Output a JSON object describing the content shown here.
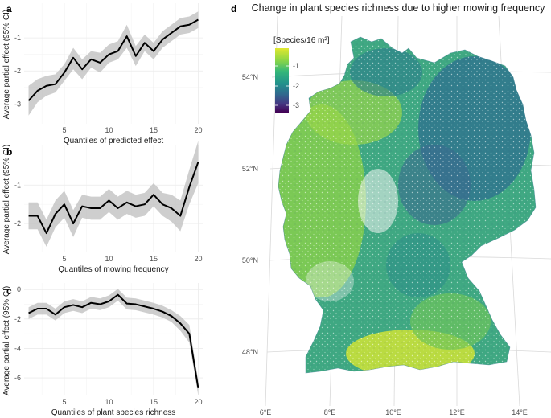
{
  "chart_data": [
    {
      "type": "line",
      "panel": "a",
      "xlabel": "Quantiles of predicted effect",
      "ylabel": "Average partial effect (95% CI)",
      "xlim": [
        0.5,
        20.5
      ],
      "ylim": [
        -3.6,
        0.05
      ],
      "xticks": [
        5,
        10,
        15,
        20
      ],
      "yticks": [
        -1,
        -2,
        -3
      ],
      "x": [
        1,
        2,
        3,
        4,
        5,
        6,
        7,
        8,
        9,
        10,
        11,
        12,
        13,
        14,
        15,
        16,
        17,
        18,
        19,
        20
      ],
      "y": [
        -2.9,
        -2.6,
        -2.45,
        -2.4,
        -2.05,
        -1.6,
        -1.95,
        -1.65,
        -1.75,
        -1.5,
        -1.4,
        -0.95,
        -1.55,
        -1.15,
        -1.4,
        -1.05,
        -0.85,
        -0.65,
        -0.6,
        -0.45
      ],
      "ci_low": [
        -3.35,
        -2.95,
        -2.75,
        -2.65,
        -2.3,
        -1.95,
        -2.25,
        -1.9,
        -2.05,
        -1.75,
        -1.65,
        -1.3,
        -1.85,
        -1.4,
        -1.65,
        -1.3,
        -1.1,
        -0.9,
        -0.85,
        -0.7
      ],
      "ci_high": [
        -2.45,
        -2.25,
        -2.15,
        -2.1,
        -1.8,
        -1.3,
        -1.65,
        -1.4,
        -1.45,
        -1.2,
        -1.1,
        -0.6,
        -1.25,
        -0.9,
        -1.15,
        -0.8,
        -0.6,
        -0.4,
        -0.35,
        -0.2
      ]
    },
    {
      "type": "line",
      "panel": "b",
      "xlabel": "Quantiles of mowing frequency",
      "ylabel": "Average partial effect (95% CI)",
      "xlim": [
        0.5,
        20.5
      ],
      "ylim": [
        -2.75,
        0.05
      ],
      "xticks": [
        5,
        10,
        15,
        20
      ],
      "yticks": [
        -1,
        -2
      ],
      "x": [
        1,
        2,
        3,
        4,
        5,
        6,
        7,
        8,
        9,
        10,
        11,
        12,
        13,
        14,
        15,
        16,
        17,
        18,
        19,
        20
      ],
      "y": [
        -1.8,
        -1.8,
        -2.25,
        -1.75,
        -1.5,
        -2.0,
        -1.55,
        -1.6,
        -1.6,
        -1.4,
        -1.6,
        -1.45,
        -1.55,
        -1.5,
        -1.25,
        -1.5,
        -1.6,
        -1.8,
        -1.05,
        -0.4
      ],
      "ci_low": [
        -2.15,
        -2.15,
        -2.6,
        -2.1,
        -1.85,
        -2.35,
        -1.85,
        -1.9,
        -1.9,
        -1.7,
        -1.9,
        -1.75,
        -1.85,
        -1.8,
        -1.55,
        -1.8,
        -1.95,
        -2.2,
        -1.5,
        -0.95
      ],
      "ci_high": [
        -1.45,
        -1.45,
        -1.9,
        -1.4,
        -1.15,
        -1.65,
        -1.25,
        -1.3,
        -1.3,
        -1.1,
        -1.3,
        -1.15,
        -1.25,
        -1.2,
        -0.95,
        -1.2,
        -1.25,
        -1.4,
        -0.6,
        0.15
      ]
    },
    {
      "type": "line",
      "panel": "c",
      "xlabel": "Quantiles of plant species richness",
      "ylabel": "Average partial effect (95% CI)",
      "xlim": [
        0.5,
        20.5
      ],
      "ylim": [
        -7.2,
        0.45
      ],
      "xticks": [
        5,
        10,
        15,
        20
      ],
      "yticks": [
        0,
        -2,
        -4,
        -6
      ],
      "x": [
        1,
        2,
        3,
        4,
        5,
        6,
        7,
        8,
        9,
        10,
        11,
        12,
        13,
        14,
        15,
        16,
        17,
        18,
        19,
        20
      ],
      "y": [
        -1.6,
        -1.3,
        -1.3,
        -1.7,
        -1.2,
        -1.05,
        -1.2,
        -0.9,
        -1.0,
        -0.8,
        -0.35,
        -0.95,
        -1.0,
        -1.15,
        -1.3,
        -1.5,
        -1.8,
        -2.3,
        -3.0,
        -6.7
      ],
      "ci_low": [
        -2.0,
        -1.7,
        -1.7,
        -2.1,
        -1.6,
        -1.45,
        -1.6,
        -1.3,
        -1.4,
        -1.2,
        -0.75,
        -1.35,
        -1.4,
        -1.55,
        -1.7,
        -1.9,
        -2.2,
        -2.8,
        -3.6,
        -7.2
      ],
      "ci_high": [
        -1.2,
        -0.9,
        -0.9,
        -1.3,
        -0.8,
        -0.65,
        -0.8,
        -0.5,
        -0.6,
        -0.4,
        0.05,
        -0.55,
        -0.6,
        -0.75,
        -0.9,
        -1.1,
        -1.4,
        -1.8,
        -2.4,
        -6.2
      ]
    },
    {
      "type": "heatmap",
      "panel": "d",
      "title": "Change in plant species richness due to higher mowing frequency",
      "legend_title": "[Species/16 m²]",
      "legend_ticks": [
        "-1",
        "-2",
        "-3"
      ],
      "legend_colors": [
        "#d9e536",
        "#8fd744",
        "#35b779",
        "#21918c",
        "#31688e",
        "#443983",
        "#440154"
      ],
      "lat_labels": [
        "54°N",
        "52°N",
        "50°N",
        "48°N"
      ],
      "lon_labels": [
        "6°E",
        "8°E",
        "10°E",
        "12°E",
        "14°E"
      ]
    }
  ]
}
